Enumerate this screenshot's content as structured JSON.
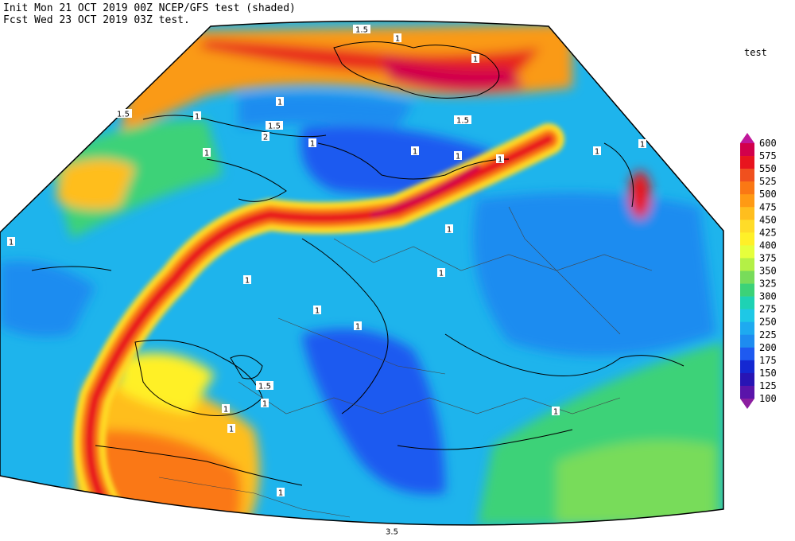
{
  "header": {
    "init": "Init  Mon 21 OCT 2019 00Z  NCEP/GFS test (shaded)",
    "fcst": "Fcst Wed 23 OCT 2019 03Z  test."
  },
  "legend": {
    "title": "test",
    "labels": [
      600,
      575,
      550,
      525,
      500,
      475,
      450,
      425,
      400,
      375,
      350,
      325,
      300,
      275,
      250,
      225,
      200,
      175,
      150,
      125,
      100
    ],
    "colors": [
      "#c0189b",
      "#d2004b",
      "#e8141e",
      "#f0501e",
      "#fa7814",
      "#ff9a14",
      "#ffbe1e",
      "#ffdc28",
      "#fff028",
      "#e6ff3c",
      "#b4f046",
      "#78dc5a",
      "#3cd278",
      "#1ed2b4",
      "#1ec8e6",
      "#1eaaf0",
      "#1e8cf0",
      "#1e5af0",
      "#1428d2",
      "#2814b4",
      "#5a14aa",
      "#8c1ea0"
    ]
  },
  "map": {
    "contour_labels": [
      "1.5",
      "1",
      "1",
      "1",
      "1.5",
      "1",
      "1.5",
      "2",
      "1",
      "1",
      "1.5",
      "1",
      "1",
      "1",
      "1",
      "1",
      "1",
      "1",
      "1",
      "1",
      "1",
      "1",
      "1.5",
      "1",
      "1",
      "1",
      "1",
      "1",
      "3.5"
    ]
  }
}
